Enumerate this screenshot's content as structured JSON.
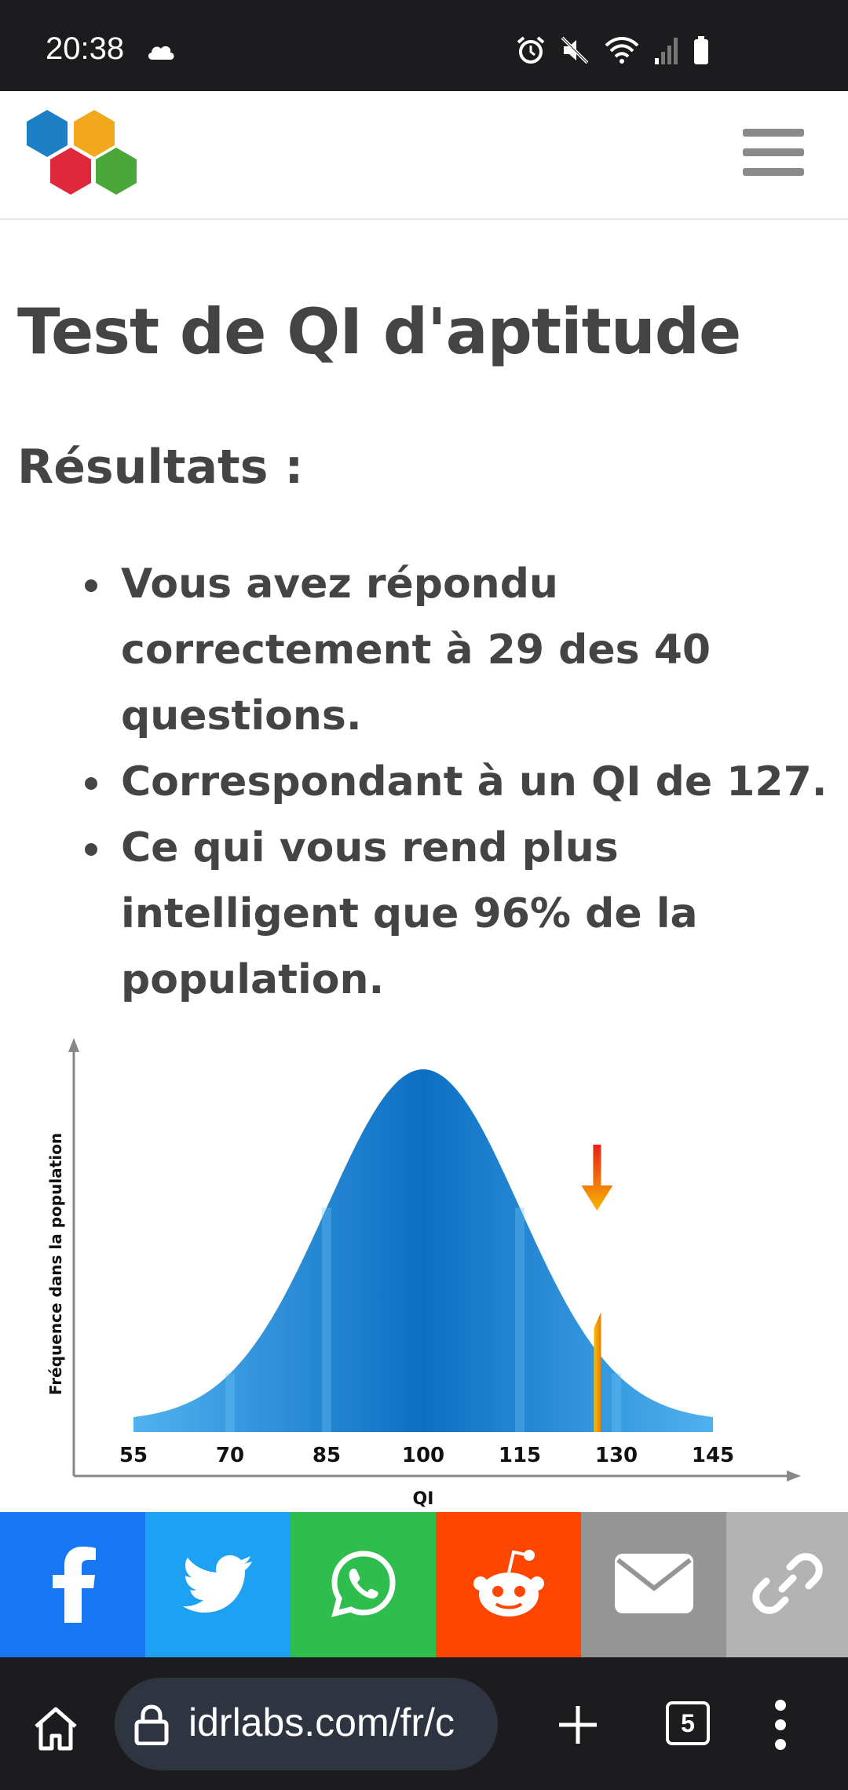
{
  "status_bar": {
    "time": "20:38",
    "icons": [
      "cloud-icon",
      "alarm-icon",
      "mute-icon",
      "wifi-icon",
      "signal-icon",
      "battery-icon"
    ]
  },
  "header": {
    "logo": "hexagon-logo",
    "logo_colors": [
      "#1d7fc4",
      "#f2a81d",
      "#e0283c",
      "#4aa83a"
    ],
    "menu_icon": "hamburger-menu-icon"
  },
  "main": {
    "title": "Test de QI d'aptitude",
    "results_heading": "Résultats :",
    "results": [
      "Vous avez répondu correctement à 29 des 40 questions.",
      "Correspondant à un QI de 127.",
      "Ce qui vous rend plus intelligent que 96% de la population."
    ]
  },
  "chart_data": {
    "type": "area",
    "ylabel": "Fréquence dans la population",
    "xlabel": "QI",
    "x_ticks": [
      55,
      70,
      85,
      100,
      115,
      130,
      145
    ],
    "xlim": [
      55,
      145
    ],
    "distribution": {
      "mean": 100,
      "sd": 15
    },
    "marker": {
      "x": 127,
      "color": "#f5b800"
    },
    "colors": {
      "curve": "#2f9ee0",
      "band_dark": "#0a6fc2",
      "marker_arrow": "#e83a1a"
    },
    "grid": false,
    "legend": "none"
  },
  "share_bar": {
    "buttons": [
      {
        "name": "facebook",
        "icon": "facebook-icon",
        "color": "#1877f2"
      },
      {
        "name": "twitter",
        "icon": "twitter-icon",
        "color": "#1da1f2"
      },
      {
        "name": "whatsapp",
        "icon": "whatsapp-icon",
        "color": "#2fbd4e"
      },
      {
        "name": "reddit",
        "icon": "reddit-icon",
        "color": "#ff4500"
      },
      {
        "name": "email",
        "icon": "email-icon",
        "color": "#959595"
      },
      {
        "name": "link",
        "icon": "link-icon",
        "color": "#b3b3b3"
      }
    ]
  },
  "browser": {
    "url": "idrlabs.com/fr/c",
    "tab_count": "5"
  }
}
